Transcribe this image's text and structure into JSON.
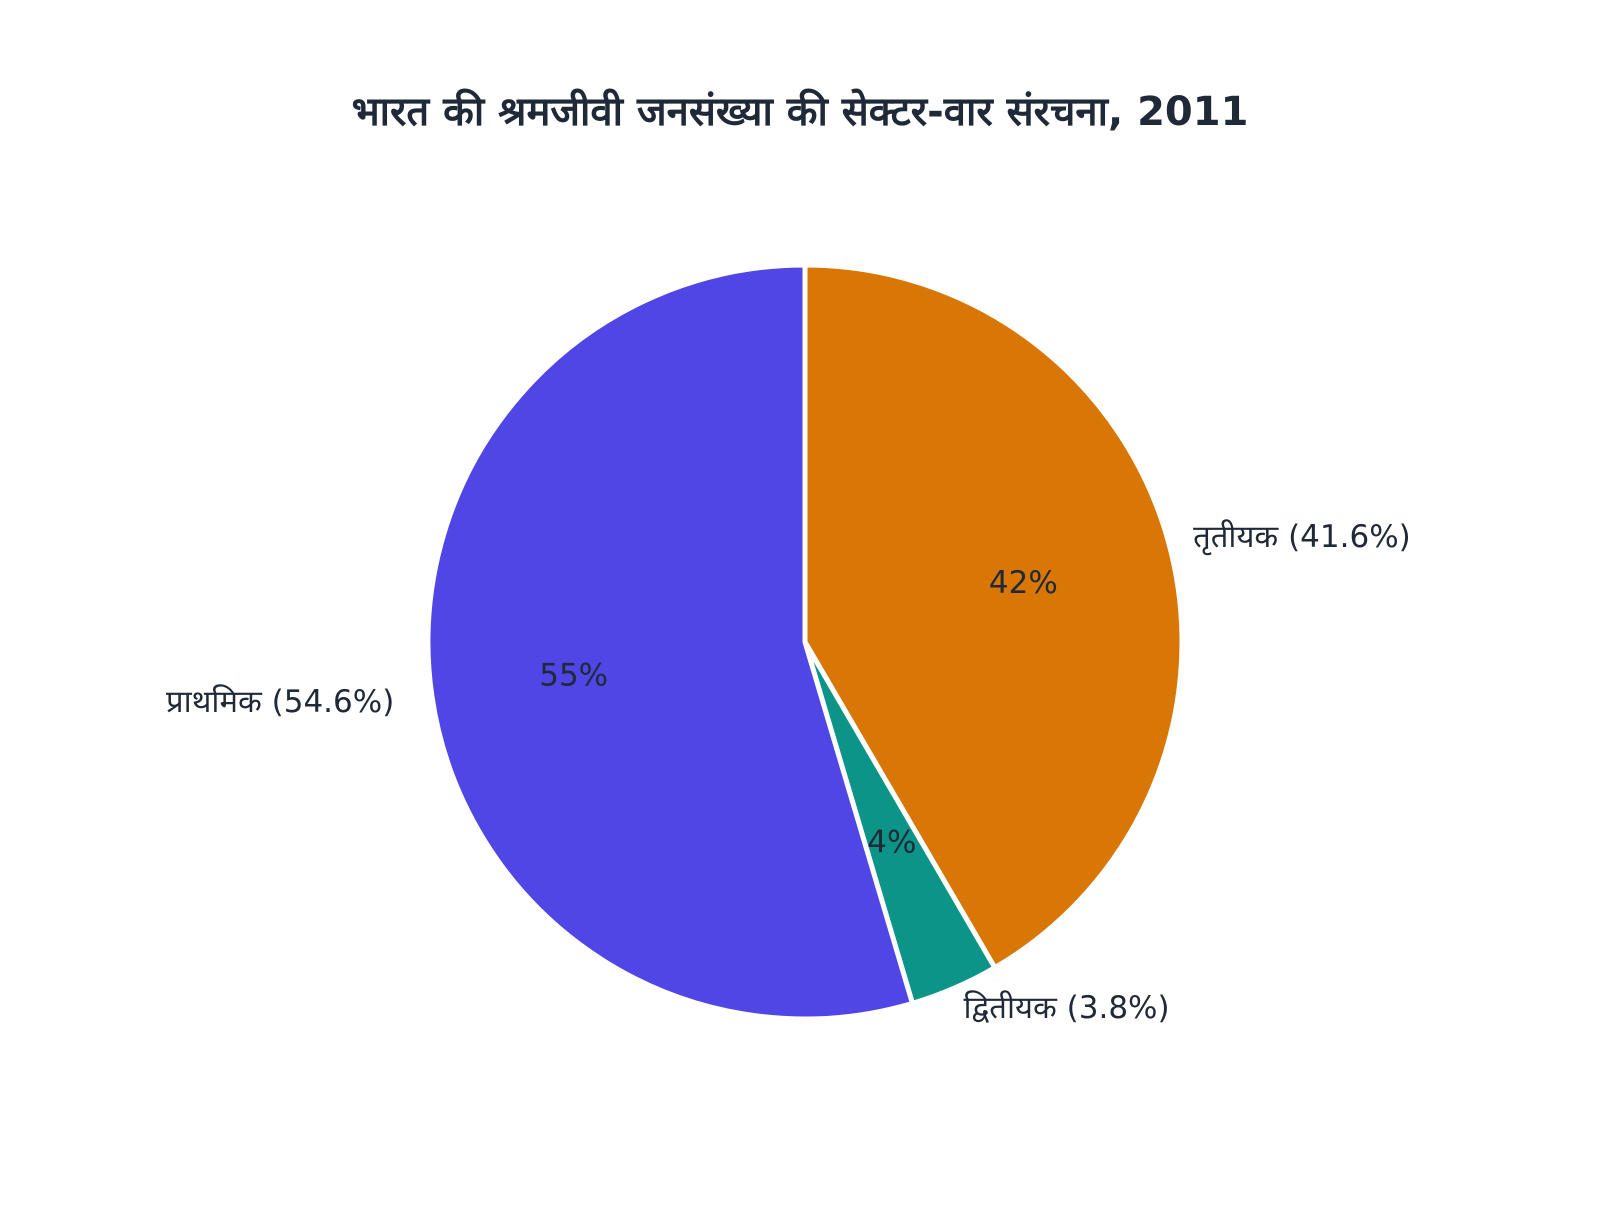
{
  "chart_data": {
    "type": "pie",
    "title": "भारत की श्रमजीवी जनसंख्या की सेक्टर-वार संरचना, 2011",
    "start": "top",
    "direction": "clockwise",
    "slices": [
      {
        "label": "तृतीयक (41.6%)",
        "value": 41.6,
        "inside_label": "42%",
        "color": "#d97706"
      },
      {
        "label": "द्वितीयक (3.8%)",
        "value": 3.8,
        "inside_label": "4%",
        "color": "#0d9488"
      },
      {
        "label": "प्राथमिक (54.6%)",
        "value": 54.6,
        "inside_label": "55%",
        "color": "#4f46e5"
      }
    ]
  }
}
